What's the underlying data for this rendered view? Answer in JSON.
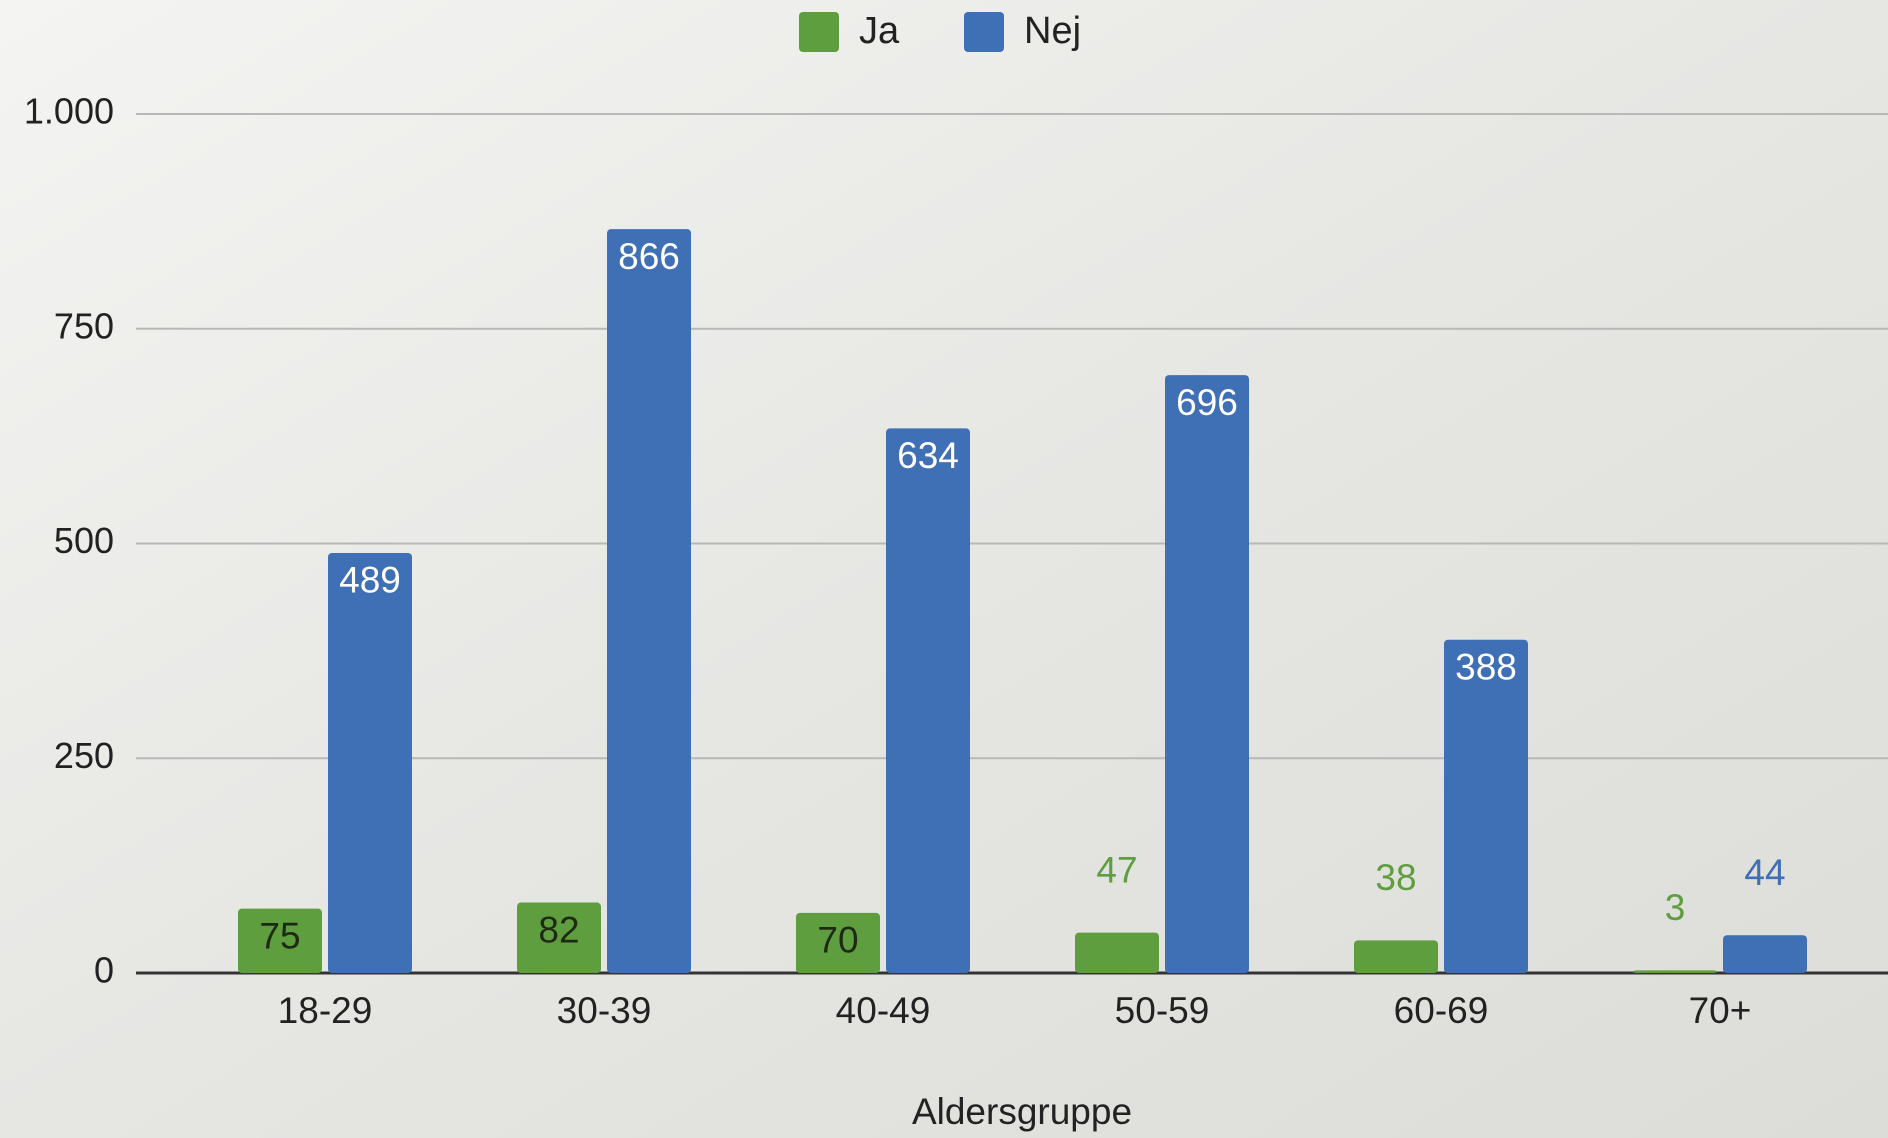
{
  "chart_data": {
    "type": "bar",
    "x_label": "Aldersgruppe",
    "categories": [
      "18-29",
      "30-39",
      "40-49",
      "50-59",
      "60-69",
      "70+"
    ],
    "series": [
      {
        "name": "Ja",
        "color": "#5e9e3e",
        "values": [
          75,
          82,
          70,
          47,
          38,
          3
        ]
      },
      {
        "name": "Nej",
        "color": "#3f6fb5",
        "values": [
          489,
          866,
          634,
          696,
          388,
          44
        ]
      }
    ],
    "ylim": [
      0,
      1000
    ],
    "yticks": [
      0,
      250,
      500,
      750,
      {
        "value": 1000,
        "label": "1.000"
      }
    ],
    "grid": true,
    "legend": "top"
  }
}
